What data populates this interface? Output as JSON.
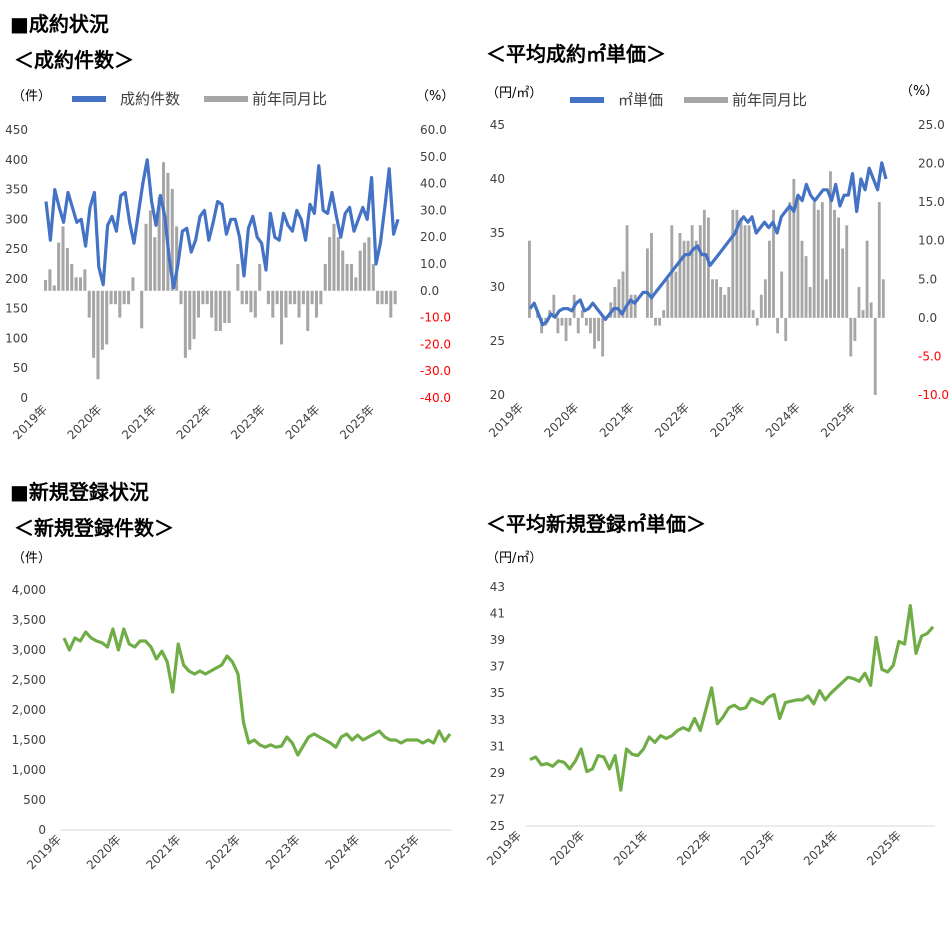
{
  "sections": {
    "contract": "■成約状況",
    "newlisting": "■新規登録状況"
  },
  "chart_data": [
    {
      "id": "c1",
      "type": "bar+line",
      "title": "＜成約件数＞",
      "y_unit_left": "（件）",
      "y_unit_right": "（%）",
      "legend": [
        "成約件数",
        "前年同月比"
      ],
      "colors": {
        "line": "#4472c4",
        "bar": "#a6a6a6"
      },
      "ylim_left": [
        0,
        450
      ],
      "yticks_left": [
        "450",
        "400",
        "350",
        "300",
        "250",
        "200",
        "150",
        "100",
        "50",
        "0"
      ],
      "ylim_right": [
        -40,
        60
      ],
      "yticks_right": [
        "60.0",
        "50.0",
        "40.0",
        "30.0",
        "20.0",
        "10.0",
        "0.0",
        "-10.0",
        "-20.0",
        "-30.0",
        "-40.0"
      ],
      "x_labels": [
        "2019年",
        "2020年",
        "2021年",
        "2022年",
        "2023年",
        "2024年",
        "2025年"
      ],
      "series": [
        {
          "name": "成約件数",
          "type": "line",
          "values": [
            330,
            265,
            350,
            320,
            295,
            345,
            320,
            295,
            300,
            255,
            320,
            345,
            220,
            190,
            290,
            305,
            280,
            340,
            345,
            295,
            260,
            310,
            360,
            400,
            330,
            290,
            340,
            305,
            235,
            185,
            225,
            280,
            285,
            245,
            265,
            305,
            315,
            265,
            295,
            330,
            325,
            275,
            300,
            300,
            270,
            205,
            285,
            305,
            270,
            260,
            215,
            310,
            270,
            265,
            310,
            290,
            280,
            315,
            300,
            265,
            325,
            310,
            390,
            315,
            310,
            345,
            305,
            270,
            310,
            320,
            280,
            300,
            320,
            300,
            370,
            225,
            260,
            320,
            385,
            275,
            300
          ]
        },
        {
          "name": "前年同月比",
          "type": "bar",
          "values": [
            4,
            8,
            2,
            18,
            24,
            16,
            10,
            5,
            5,
            8,
            -10,
            -25,
            -33,
            -22,
            -20,
            -5,
            -5,
            -10,
            -5,
            -5,
            5,
            0,
            -14,
            25,
            30,
            20,
            35,
            48,
            44,
            38,
            24,
            -5,
            -25,
            -22,
            -18,
            -10,
            -5,
            -5,
            -10,
            -15,
            -15,
            -12,
            -12,
            0,
            10,
            -5,
            -5,
            -8,
            -10,
            10,
            0,
            -5,
            -10,
            -5,
            -20,
            -10,
            -5,
            -5,
            -10,
            -5,
            -15,
            -5,
            -10,
            -5,
            10,
            20,
            25,
            20,
            15,
            10,
            10,
            5,
            15,
            18,
            20,
            10,
            -5,
            -5,
            -5,
            -10,
            -5
          ]
        }
      ]
    },
    {
      "id": "c2",
      "type": "bar+line",
      "title": "＜平均成約㎡単価＞",
      "y_unit_left": "（円/㎡）",
      "y_unit_right": "（%）",
      "legend": [
        "㎡単価",
        "前年同月比"
      ],
      "colors": {
        "line": "#4472c4",
        "bar": "#a6a6a6"
      },
      "ylim_left": [
        20,
        45
      ],
      "yticks_left": [
        "45",
        "40",
        "35",
        "30",
        "25",
        "20"
      ],
      "ylim_right": [
        -10,
        25
      ],
      "yticks_right": [
        "25.0",
        "20.0",
        "15.0",
        "10.0",
        "5.0",
        "0.0",
        "-5.0",
        "-10.0"
      ],
      "x_labels": [
        "2019年",
        "2020年",
        "2021年",
        "2022年",
        "2023年",
        "2024年",
        "2025年"
      ],
      "series": [
        {
          "name": "㎡単価",
          "type": "line",
          "values": [
            28.0,
            28.5,
            27.5,
            26.5,
            26.8,
            27.5,
            27.2,
            27.8,
            28.0,
            28.0,
            27.8,
            28.5,
            28.8,
            27.8,
            28.0,
            28.5,
            28.0,
            27.5,
            27.0,
            27.5,
            28.0,
            28.0,
            27.5,
            28.2,
            28.8,
            28.5,
            29.0,
            29.5,
            29.5,
            29.0,
            29.5,
            30.0,
            30.5,
            31.0,
            31.5,
            32.0,
            32.5,
            33.0,
            33.0,
            33.5,
            33.8,
            33.0,
            33.0,
            32.0,
            32.5,
            33.0,
            33.5,
            34.0,
            34.5,
            35.0,
            36.0,
            36.5,
            36.0,
            36.5,
            35.0,
            35.5,
            36.0,
            35.5,
            36.0,
            35.0,
            36.5,
            37.0,
            37.5,
            37.0,
            38.5,
            38.0,
            39.5,
            38.5,
            38.0,
            38.5,
            39.0,
            39.0,
            38.0,
            39.5,
            37.5,
            38.5,
            38.5,
            40.5,
            37.0,
            40.0,
            39.0,
            41.0,
            40.0,
            39.0,
            41.5,
            40.0
          ]
        },
        {
          "name": "前年同月比",
          "type": "bar",
          "values": [
            10,
            0,
            1,
            -2,
            -1,
            1,
            3,
            -2,
            -1,
            -3,
            -1,
            3,
            -2,
            1,
            -1,
            -2,
            -4,
            -3,
            -5,
            0,
            2,
            4,
            5,
            6,
            12,
            3,
            3,
            0,
            0,
            9,
            11,
            -1,
            -1,
            1,
            5,
            12,
            6,
            11,
            10,
            10,
            12,
            10,
            12,
            14,
            13,
            5,
            5,
            4,
            3,
            4,
            14,
            14,
            13,
            12,
            12,
            1,
            -1,
            3,
            5,
            10,
            14,
            -2,
            6,
            -3,
            15,
            18,
            16,
            10,
            8,
            4,
            15,
            14,
            15,
            5,
            19,
            14,
            13,
            9,
            12,
            -5,
            -3,
            4,
            1,
            10,
            2,
            -10,
            15,
            5
          ]
        }
      ]
    },
    {
      "id": "c3",
      "type": "line",
      "title": "＜新規登録件数＞",
      "y_unit_left": "（件）",
      "colors": {
        "line": "#70ad47"
      },
      "ylim_left": [
        0,
        4000
      ],
      "yticks_left": [
        "4,000",
        "3,500",
        "3,000",
        "2,500",
        "2,000",
        "1,500",
        "1,000",
        "500",
        "0"
      ],
      "x_labels": [
        "2019年",
        "2020年",
        "2021年",
        "2022年",
        "2023年",
        "2024年",
        "2025年"
      ],
      "series": [
        {
          "name": "新規登録件数",
          "type": "line",
          "values": [
            3200,
            3000,
            3200,
            3150,
            3300,
            3200,
            3150,
            3120,
            3050,
            3350,
            3000,
            3350,
            3100,
            3050,
            3150,
            3150,
            3050,
            2850,
            2980,
            2800,
            2300,
            3100,
            2750,
            2650,
            2600,
            2650,
            2600,
            2650,
            2700,
            2750,
            2900,
            2800,
            2600,
            1800,
            1450,
            1500,
            1420,
            1380,
            1420,
            1380,
            1400,
            1550,
            1450,
            1250,
            1400,
            1550,
            1600,
            1550,
            1500,
            1450,
            1380,
            1550,
            1600,
            1500,
            1580,
            1500,
            1550,
            1600,
            1650,
            1550,
            1500,
            1500,
            1450,
            1500,
            1500,
            1500,
            1450,
            1500,
            1450,
            1650,
            1480,
            1600
          ]
        }
      ]
    },
    {
      "id": "c4",
      "type": "line",
      "title": "＜平均新規登録㎡単価＞",
      "y_unit_left": "（円/㎡）",
      "colors": {
        "line": "#70ad47"
      },
      "ylim_left": [
        25,
        43
      ],
      "yticks_left": [
        "43",
        "41",
        "39",
        "37",
        "35",
        "33",
        "31",
        "29",
        "27",
        "25"
      ],
      "x_labels": [
        "2019年",
        "2020年",
        "2021年",
        "2022年",
        "2023年",
        "2024年",
        "2025年"
      ],
      "series": [
        {
          "name": "新規登録㎡単価",
          "type": "line",
          "values": [
            30.0,
            30.2,
            29.6,
            29.7,
            29.5,
            29.9,
            29.8,
            29.3,
            29.9,
            30.8,
            29.1,
            29.3,
            30.3,
            30.2,
            29.3,
            30.3,
            27.7,
            30.8,
            30.4,
            30.3,
            30.8,
            31.7,
            31.3,
            31.8,
            31.6,
            31.8,
            32.2,
            32.4,
            32.2,
            33.1,
            32.2,
            33.8,
            35.4,
            32.7,
            33.2,
            33.9,
            34.1,
            33.8,
            33.9,
            34.6,
            34.4,
            34.2,
            34.7,
            34.9,
            33.1,
            34.3,
            34.4,
            34.5,
            34.5,
            34.8,
            34.2,
            35.2,
            34.5,
            35.0,
            35.4,
            35.8,
            36.2,
            36.1,
            35.9,
            36.5,
            35.6,
            39.2,
            36.8,
            36.6,
            37.1,
            38.9,
            38.7,
            41.6,
            38.0,
            39.3,
            39.5,
            40.0
          ]
        }
      ]
    }
  ]
}
